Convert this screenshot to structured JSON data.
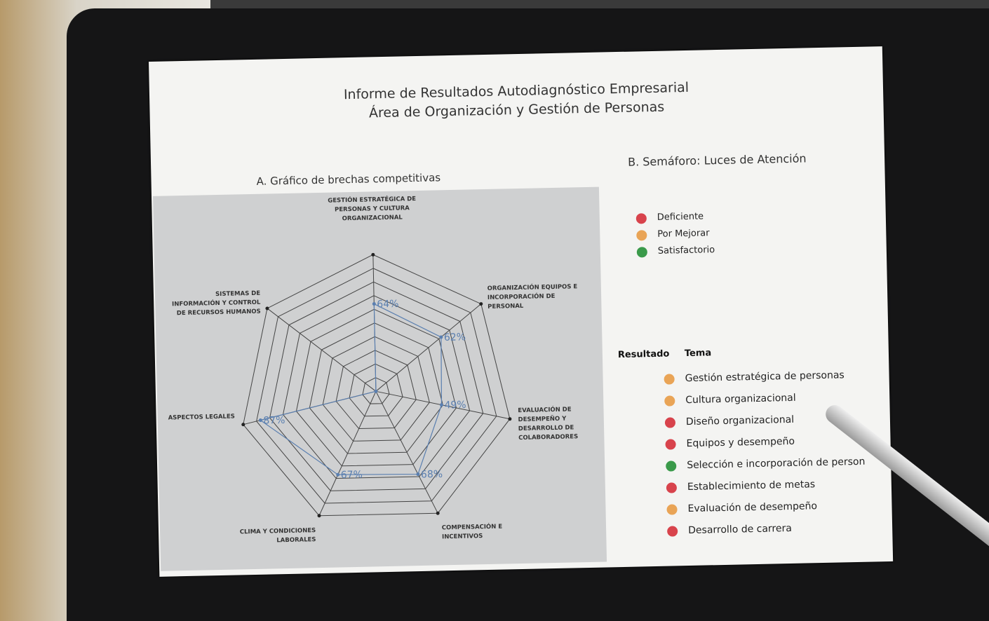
{
  "header": {
    "title": "Informe de Resultados Autodiagnóstico Empresarial",
    "subtitle": "Área de Organización y Gestión de Personas"
  },
  "chart_data": {
    "type": "radar",
    "title": "A. Gráfico de brechas competitivas",
    "categories": [
      "GESTIÓN ESTRATÉGICA DE PERSONAS Y CULTURA ORGANIZACIONAL",
      "ORGANIZACIÓN EQUIPOS E INCORPORACIÓN DE PERSONAL",
      "EVALUACIÓN DE DESEMPEÑO Y DESARROLLO DE COLABORADORES",
      "COMPENSACIÓN E INCENTIVOS",
      "CLIMA Y CONDICIONES LABORALES",
      "ASPECTOS LEGALES",
      "SISTEMAS DE INFORMACIÓN Y CONTROL DE RECURSOS HUMANOS"
    ],
    "values": [
      64,
      62,
      49,
      68,
      67,
      87,
      0
    ],
    "value_labels": [
      "64%",
      "62%",
      "49%",
      "68%",
      "67%",
      "87%",
      null
    ],
    "color": "#5a7fb0",
    "rlim": [
      0,
      100
    ],
    "rticks": [
      10,
      20,
      30,
      40,
      50,
      60,
      70,
      80,
      90,
      100
    ],
    "grid": true
  },
  "semaforo": {
    "title": "B. Semáforo: Luces de Atención",
    "legend": [
      {
        "label": "Deficiente",
        "color": "#d8434c"
      },
      {
        "label": "Por Mejorar",
        "color": "#e9a456"
      },
      {
        "label": "Satisfactorio",
        "color": "#3a9a4a"
      }
    ],
    "table": {
      "headers": [
        "Resultado",
        "Tema"
      ],
      "rows": [
        {
          "color": "#e9a456",
          "tema": "Gestión estratégica de personas"
        },
        {
          "color": "#e9a456",
          "tema": "Cultura organizacional"
        },
        {
          "color": "#d8434c",
          "tema": "Diseño organizacional"
        },
        {
          "color": "#d8434c",
          "tema": "Equipos y desempeño"
        },
        {
          "color": "#3a9a4a",
          "tema": "Selección e incorporación de person"
        },
        {
          "color": "#d8434c",
          "tema": "Establecimiento de metas"
        },
        {
          "color": "#e9a456",
          "tema": "Evaluación de desempeño"
        },
        {
          "color": "#d8434c",
          "tema": "Desarrollo de carrera"
        }
      ]
    }
  }
}
